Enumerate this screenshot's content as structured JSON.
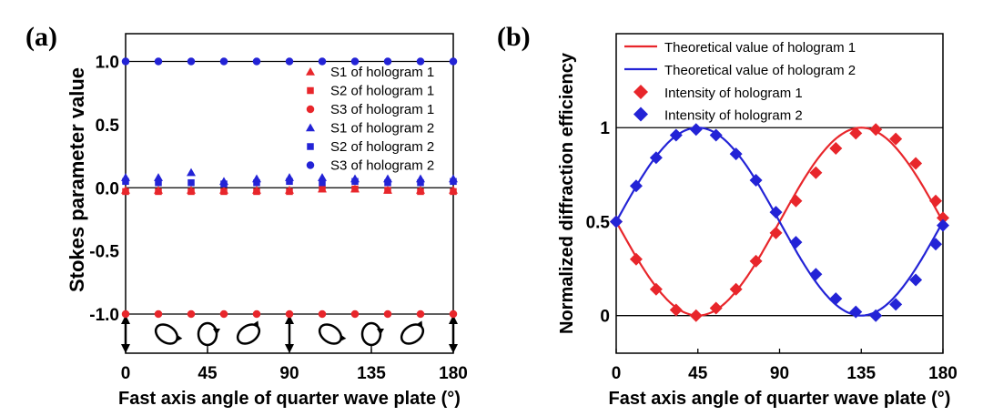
{
  "chart_data": [
    {
      "panel_label": "(a)",
      "type": "scatter",
      "xlabel": "Fast axis angle  of quarter wave plate (°)",
      "ylabel": "Stokes parameter value",
      "xlim": [
        0,
        180
      ],
      "ylim": [
        -1.31,
        1.22
      ],
      "xticks": [
        "0",
        "45",
        "90",
        "135",
        "180"
      ],
      "yticks": [
        "1.0",
        "0.5",
        "0.0",
        "-0.5",
        "-1.0"
      ],
      "ytick_values": [
        1.0,
        0.5,
        0.0,
        -0.5,
        -1.0
      ],
      "reference_lines": [
        1,
        0,
        -1
      ],
      "legend_placement": "top-right",
      "x": [
        0,
        18,
        36,
        54,
        72,
        90,
        108,
        126,
        144,
        162,
        180
      ],
      "series": [
        {
          "name": "S1 of hologram 1",
          "marker": "triangle",
          "color": "#e8262b",
          "values": [
            -0.02,
            -0.02,
            -0.02,
            -0.02,
            -0.02,
            -0.02,
            -0.01,
            -0.01,
            -0.02,
            -0.02,
            -0.02
          ]
        },
        {
          "name": "S2 of hologram 1",
          "marker": "square",
          "color": "#e8262b",
          "values": [
            -0.03,
            -0.03,
            -0.03,
            -0.03,
            -0.03,
            -0.03,
            -0.01,
            -0.01,
            -0.02,
            -0.03,
            -0.03
          ]
        },
        {
          "name": "S3 of hologram 1",
          "marker": "circle",
          "color": "#e8262b",
          "values": [
            -1,
            -1,
            -1,
            -1,
            -1,
            -1,
            -1,
            -1,
            -1,
            -1,
            -1
          ]
        },
        {
          "name": "S1 of hologram 2",
          "marker": "triangle",
          "color": "#2323d6",
          "values": [
            0.08,
            0.08,
            0.12,
            0.05,
            0.07,
            0.08,
            0.08,
            0.07,
            0.07,
            0.07,
            0.07
          ]
        },
        {
          "name": "S2 of hologram 2",
          "marker": "square",
          "color": "#2323d6",
          "values": [
            0.05,
            0.04,
            0.04,
            0.03,
            0.04,
            0.05,
            0.04,
            0.05,
            0.04,
            0.04,
            0.05
          ]
        },
        {
          "name": "S3 of hologram 2",
          "marker": "circle",
          "color": "#2323d6",
          "values": [
            1,
            1,
            1,
            1,
            1,
            1,
            1,
            1,
            1,
            1,
            1
          ]
        }
      ],
      "polarization_icons": [
        {
          "x": 0,
          "state": "linear-vertical"
        },
        {
          "x": 22.5,
          "state": "ellipse-tilted-left"
        },
        {
          "x": 45,
          "state": "circle"
        },
        {
          "x": 67.5,
          "state": "ellipse-tilted-right"
        },
        {
          "x": 90,
          "state": "linear-vertical"
        },
        {
          "x": 112.5,
          "state": "ellipse-tilted-left"
        },
        {
          "x": 135,
          "state": "circle"
        },
        {
          "x": 157.5,
          "state": "ellipse-tilted-right"
        },
        {
          "x": 180,
          "state": "linear-vertical"
        }
      ]
    },
    {
      "panel_label": "(b)",
      "type": "line+scatter",
      "xlabel": "Fast axis angle  of quarter wave plate (°)",
      "ylabel": "Normalized diffraction efficiency",
      "xlim": [
        0,
        180
      ],
      "ylim": [
        -0.2,
        1.5
      ],
      "xticks": [
        "0",
        "45",
        "90",
        "135",
        "180"
      ],
      "yticks": [
        "1",
        "0.5",
        "0"
      ],
      "ytick_values": [
        1,
        0.5,
        0
      ],
      "reference_lines": [
        1,
        0
      ],
      "legend_placement": "top-left",
      "lines": [
        {
          "name": "Theoretical value of hologram 1",
          "color": "#e8262b",
          "formula": "0.5 - 0.5*sin(2x)"
        },
        {
          "name": "Theoretical value of hologram 2",
          "color": "#2323d6",
          "formula": "0.5 + 0.5*sin(2x)"
        }
      ],
      "x": [
        0,
        11,
        22,
        33,
        44,
        55,
        66,
        77,
        88,
        99,
        110,
        121,
        132,
        143,
        154,
        165,
        176,
        180
      ],
      "series": [
        {
          "name": "Intensity of hologram 1",
          "marker": "diamond",
          "color": "#e8262b",
          "values": [
            0.5,
            0.3,
            0.14,
            0.03,
            0.0,
            0.04,
            0.14,
            0.29,
            0.44,
            0.61,
            0.76,
            0.89,
            0.97,
            0.99,
            0.94,
            0.81,
            0.61,
            0.52
          ]
        },
        {
          "name": "Intensity of hologram 2",
          "marker": "diamond",
          "color": "#2323d6",
          "values": [
            0.5,
            0.69,
            0.84,
            0.96,
            0.99,
            0.96,
            0.86,
            0.72,
            0.55,
            0.39,
            0.22,
            0.09,
            0.02,
            0.0,
            0.06,
            0.19,
            0.38,
            0.48
          ]
        }
      ]
    }
  ]
}
